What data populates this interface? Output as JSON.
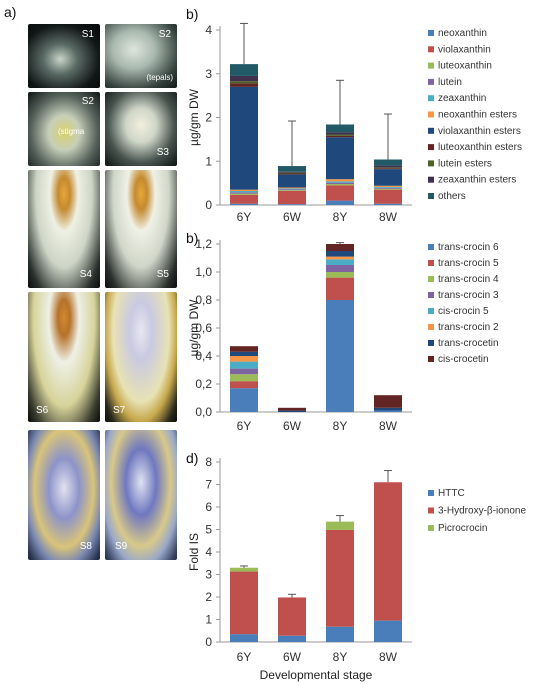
{
  "panel_labels": {
    "a": "a)",
    "b1": "b)",
    "b2": "b)",
    "d": "d)"
  },
  "photos": [
    {
      "id": "S1",
      "label": "S1",
      "sublabel": ""
    },
    {
      "id": "S2a",
      "label": "S2",
      "sublabel": "(tepals)"
    },
    {
      "id": "S2b",
      "label": "S2",
      "sublabel": "(stigma"
    },
    {
      "id": "S3",
      "label": "S3",
      "sublabel": ""
    },
    {
      "id": "S4",
      "label": "S4",
      "sublabel": ""
    },
    {
      "id": "S5",
      "label": "S5",
      "sublabel": ""
    },
    {
      "id": "S6",
      "label": "S6",
      "sublabel": ""
    },
    {
      "id": "S7",
      "label": "S7",
      "sublabel": ""
    },
    {
      "id": "S8",
      "label": "S8",
      "sublabel": ""
    },
    {
      "id": "S9",
      "label": "S9",
      "sublabel": ""
    }
  ],
  "chart_data": [
    {
      "type": "bar",
      "stacked": true,
      "title": "",
      "ylabel": "µg/gm DW",
      "xlabel": "",
      "categories": [
        "6Y",
        "6W",
        "8Y",
        "8W"
      ],
      "ylim": [
        0,
        4
      ],
      "yticks": [
        "0",
        "1",
        "2",
        "3",
        "4"
      ],
      "legend_position": "right",
      "series": [
        {
          "name": "neoxanthin",
          "color": "#4a7ebb",
          "values": [
            0.03,
            0.02,
            0.1,
            0.03
          ]
        },
        {
          "name": "violaxanthin",
          "color": "#c0504d",
          "values": [
            0.2,
            0.3,
            0.35,
            0.32
          ]
        },
        {
          "name": "luteoxanthin",
          "color": "#9bbb59",
          "values": [
            0.03,
            0.02,
            0.03,
            0.02
          ]
        },
        {
          "name": "lutein",
          "color": "#8064a2",
          "values": [
            0.03,
            0.02,
            0.03,
            0.02
          ]
        },
        {
          "name": "zeaxanthin",
          "color": "#4bacc6",
          "values": [
            0.03,
            0.02,
            0.03,
            0.02
          ]
        },
        {
          "name": "neoxanthin esters",
          "color": "#f79646",
          "values": [
            0.03,
            0.02,
            0.05,
            0.03
          ]
        },
        {
          "name": "violaxanthin esters",
          "color": "#1f497d",
          "values": [
            2.35,
            0.3,
            0.96,
            0.38
          ]
        },
        {
          "name": "luteoxanthin esters",
          "color": "#632523",
          "values": [
            0.08,
            0.02,
            0.03,
            0.02
          ]
        },
        {
          "name": "lutein esters",
          "color": "#4f6228",
          "values": [
            0.05,
            0.02,
            0.03,
            0.02
          ]
        },
        {
          "name": "zeaxanthin esters",
          "color": "#403151",
          "values": [
            0.12,
            0.02,
            0.05,
            0.04
          ]
        },
        {
          "name": "others",
          "color": "#215967",
          "values": [
            0.27,
            0.13,
            0.18,
            0.14
          ]
        }
      ],
      "error_top": [
        4.15,
        1.92,
        2.85,
        2.08
      ]
    },
    {
      "type": "bar",
      "stacked": true,
      "title": "",
      "ylabel": "µg/gm DW",
      "xlabel": "",
      "categories": [
        "6Y",
        "6W",
        "8Y",
        "8W"
      ],
      "ylim": [
        0,
        1.2
      ],
      "yticks": [
        "0,0",
        "0,2",
        "0,4",
        "0,6",
        "0,8",
        "1,0",
        "1,2"
      ],
      "legend_position": "right",
      "series": [
        {
          "name": "trans-crocin 6",
          "color": "#4a7ebb",
          "values": [
            0.17,
            0.0,
            0.8,
            0.01
          ]
        },
        {
          "name": "trans-crocin 5",
          "color": "#c0504d",
          "values": [
            0.05,
            0.0,
            0.16,
            0.0
          ]
        },
        {
          "name": "trans-crocin 4",
          "color": "#9bbb59",
          "values": [
            0.05,
            0.0,
            0.04,
            0.0
          ]
        },
        {
          "name": "trans-crocin 3",
          "color": "#8064a2",
          "values": [
            0.04,
            0.0,
            0.05,
            0.0
          ]
        },
        {
          "name": "cis-crocin 5",
          "color": "#4bacc6",
          "values": [
            0.05,
            0.0,
            0.04,
            0.0
          ]
        },
        {
          "name": "trans-crocin 2",
          "color": "#f79646",
          "values": [
            0.04,
            0.0,
            0.02,
            0.0
          ]
        },
        {
          "name": "trans-crocetin",
          "color": "#1f497d",
          "values": [
            0.03,
            0.01,
            0.04,
            0.02
          ]
        },
        {
          "name": "cis-crocetin",
          "color": "#632523",
          "values": [
            0.04,
            0.02,
            0.05,
            0.09
          ]
        }
      ],
      "error_top": [
        null,
        null,
        1.21,
        null
      ]
    },
    {
      "type": "bar",
      "stacked": true,
      "title": "",
      "ylabel": "Fold IS",
      "xlabel": "Developmental stage",
      "categories": [
        "6Y",
        "6W",
        "8Y",
        "8W"
      ],
      "ylim": [
        0,
        8
      ],
      "yticks": [
        "0",
        "1",
        "2",
        "3",
        "4",
        "5",
        "6",
        "7",
        "8"
      ],
      "legend_position": "right",
      "series": [
        {
          "name": "HTTC",
          "color": "#4a7ebb",
          "values": [
            0.35,
            0.28,
            0.68,
            0.95
          ]
        },
        {
          "name": "3-Hydroxy-β-ionone",
          "color": "#c0504d",
          "values": [
            2.78,
            1.7,
            4.3,
            6.15
          ]
        },
        {
          "name": "Picrocrocin",
          "color": "#9bbb59",
          "values": [
            0.17,
            0.0,
            0.37,
            0.0
          ]
        }
      ],
      "error_top": [
        3.38,
        2.12,
        5.62,
        7.62
      ]
    }
  ]
}
